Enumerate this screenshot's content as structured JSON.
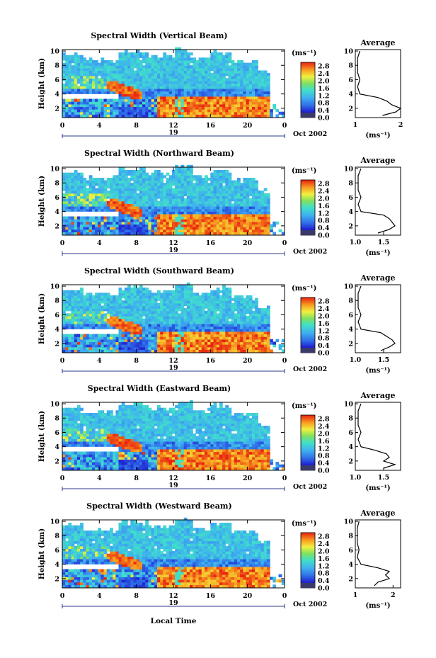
{
  "figure": {
    "xlabel": "Local Time",
    "cbar_unit": "(ms⁻¹)",
    "avg_unit": "(ms⁻¹)",
    "avg_title": "Average",
    "date_label": "Oct 2002",
    "day_label": "19"
  },
  "chart_data": [
    {
      "type": "heatmap",
      "title": "Spectral Width (Vertical Beam)",
      "ylabel": "Height (km)",
      "x_ticks": [
        "0",
        "4",
        "8",
        "12",
        "16",
        "20",
        "0"
      ],
      "y_ticks": [
        "2",
        "4",
        "6",
        "8",
        "10"
      ],
      "xlim": [
        0,
        24
      ],
      "ylim": [
        0.7,
        10.2
      ],
      "colorbar": {
        "ticks": [
          "0.0",
          "0.4",
          "0.8",
          "1.2",
          "1.6",
          "2.0",
          "2.4",
          "2.8"
        ],
        "range": [
          0,
          3.0
        ]
      },
      "average": {
        "xlim": [
          1,
          2
        ],
        "x_ticks": [
          "1",
          "2"
        ],
        "y_ticks": [
          "2",
          "4",
          "6",
          "8",
          "10"
        ],
        "heights": [
          1.0,
          1.5,
          2.0,
          2.5,
          3.0,
          3.5,
          4.0,
          5.0,
          6.0,
          7.0,
          8.0,
          9.0,
          10.0
        ],
        "values": [
          1.6,
          1.9,
          2.0,
          1.8,
          1.7,
          1.5,
          1.1,
          1.05,
          1.1,
          1.05,
          1.05,
          1.05,
          1.1
        ]
      }
    },
    {
      "type": "heatmap",
      "title": "Spectral Width (Northward Beam)",
      "ylabel": "Height (km)",
      "x_ticks": [
        "0",
        "4",
        "8",
        "12",
        "16",
        "20",
        "0"
      ],
      "y_ticks": [
        "2",
        "4",
        "6",
        "8",
        "10"
      ],
      "xlim": [
        0,
        24
      ],
      "ylim": [
        0.7,
        10.2
      ],
      "colorbar": {
        "ticks": [
          "0.0",
          "0.4",
          "0.8",
          "1.2",
          "1.6",
          "2.0",
          "2.4",
          "2.8"
        ],
        "range": [
          0,
          3.0
        ]
      },
      "average": {
        "xlim": [
          1.0,
          1.8
        ],
        "x_ticks": [
          "1.0",
          "1.5"
        ],
        "y_ticks": [
          "2",
          "4",
          "6",
          "8",
          "10"
        ],
        "heights": [
          1.0,
          1.5,
          2.0,
          2.5,
          3.0,
          3.5,
          4.0,
          5.0,
          6.0,
          7.0,
          8.0,
          9.0,
          10.0
        ],
        "values": [
          1.4,
          1.6,
          1.7,
          1.65,
          1.6,
          1.5,
          1.1,
          1.05,
          1.1,
          1.05,
          1.05,
          1.05,
          1.1
        ]
      }
    },
    {
      "type": "heatmap",
      "title": "Spectral Width (Southward Beam)",
      "ylabel": "Height (km)",
      "x_ticks": [
        "0",
        "4",
        "8",
        "12",
        "16",
        "20",
        "0"
      ],
      "y_ticks": [
        "2",
        "4",
        "6",
        "8",
        "10"
      ],
      "xlim": [
        0,
        24
      ],
      "ylim": [
        0.7,
        10.2
      ],
      "colorbar": {
        "ticks": [
          "0.0",
          "0.4",
          "0.8",
          "1.2",
          "1.6",
          "2.0",
          "2.4",
          "2.8"
        ],
        "range": [
          0,
          3.0
        ]
      },
      "average": {
        "xlim": [
          1.0,
          1.8
        ],
        "x_ticks": [
          "1.0",
          "1.5"
        ],
        "y_ticks": [
          "2",
          "4",
          "6",
          "8",
          "10"
        ],
        "heights": [
          1.0,
          1.5,
          2.0,
          2.5,
          3.0,
          3.5,
          4.0,
          5.0,
          6.0,
          7.0,
          8.0,
          9.0,
          10.0
        ],
        "values": [
          1.45,
          1.6,
          1.7,
          1.65,
          1.55,
          1.45,
          1.1,
          1.05,
          1.1,
          1.05,
          1.05,
          1.05,
          1.1
        ]
      }
    },
    {
      "type": "heatmap",
      "title": "Spectral Width (Eastward Beam)",
      "ylabel": "Height (km)",
      "x_ticks": [
        "0",
        "4",
        "8",
        "12",
        "16",
        "20",
        "0"
      ],
      "y_ticks": [
        "2",
        "4",
        "6",
        "8",
        "10"
      ],
      "xlim": [
        0,
        24
      ],
      "ylim": [
        0.7,
        10.2
      ],
      "colorbar": {
        "ticks": [
          "0.0",
          "0.4",
          "0.8",
          "1.2",
          "1.6",
          "2.0",
          "2.4",
          "2.8"
        ],
        "range": [
          0,
          3.0
        ]
      },
      "average": {
        "xlim": [
          1.0,
          1.8
        ],
        "x_ticks": [
          "1.0",
          "1.5"
        ],
        "y_ticks": [
          "2",
          "4",
          "6",
          "8",
          "10"
        ],
        "heights": [
          1.0,
          1.5,
          2.0,
          2.5,
          3.0,
          3.5,
          4.0,
          5.0,
          6.0,
          7.0,
          8.0,
          9.0,
          10.0
        ],
        "values": [
          1.5,
          1.7,
          1.5,
          1.6,
          1.55,
          1.35,
          1.1,
          1.05,
          1.1,
          1.05,
          1.05,
          1.05,
          1.1
        ]
      }
    },
    {
      "type": "heatmap",
      "title": "Spectral Width (Westward Beam)",
      "ylabel": "Height (km)",
      "x_ticks": [
        "0",
        "4",
        "8",
        "12",
        "16",
        "20",
        "0"
      ],
      "y_ticks": [
        "2",
        "4",
        "6",
        "8",
        "10"
      ],
      "xlim": [
        0,
        24
      ],
      "ylim": [
        0.7,
        10.2
      ],
      "colorbar": {
        "ticks": [
          "0.0",
          "0.4",
          "0.8",
          "1.2",
          "1.6",
          "2.0",
          "2.4",
          "2.8"
        ],
        "range": [
          0,
          3.0
        ]
      },
      "average": {
        "xlim": [
          1,
          2.2
        ],
        "x_ticks": [
          "1",
          "2"
        ],
        "y_ticks": [
          "2",
          "4",
          "6",
          "8",
          "10"
        ],
        "heights": [
          1.0,
          1.5,
          2.0,
          2.5,
          3.0,
          3.5,
          4.0,
          5.0,
          6.0,
          7.0,
          8.0,
          9.0,
          10.0
        ],
        "values": [
          1.5,
          1.6,
          1.9,
          1.8,
          1.9,
          1.6,
          1.15,
          1.05,
          1.1,
          1.05,
          1.05,
          1.05,
          1.1
        ]
      }
    }
  ]
}
